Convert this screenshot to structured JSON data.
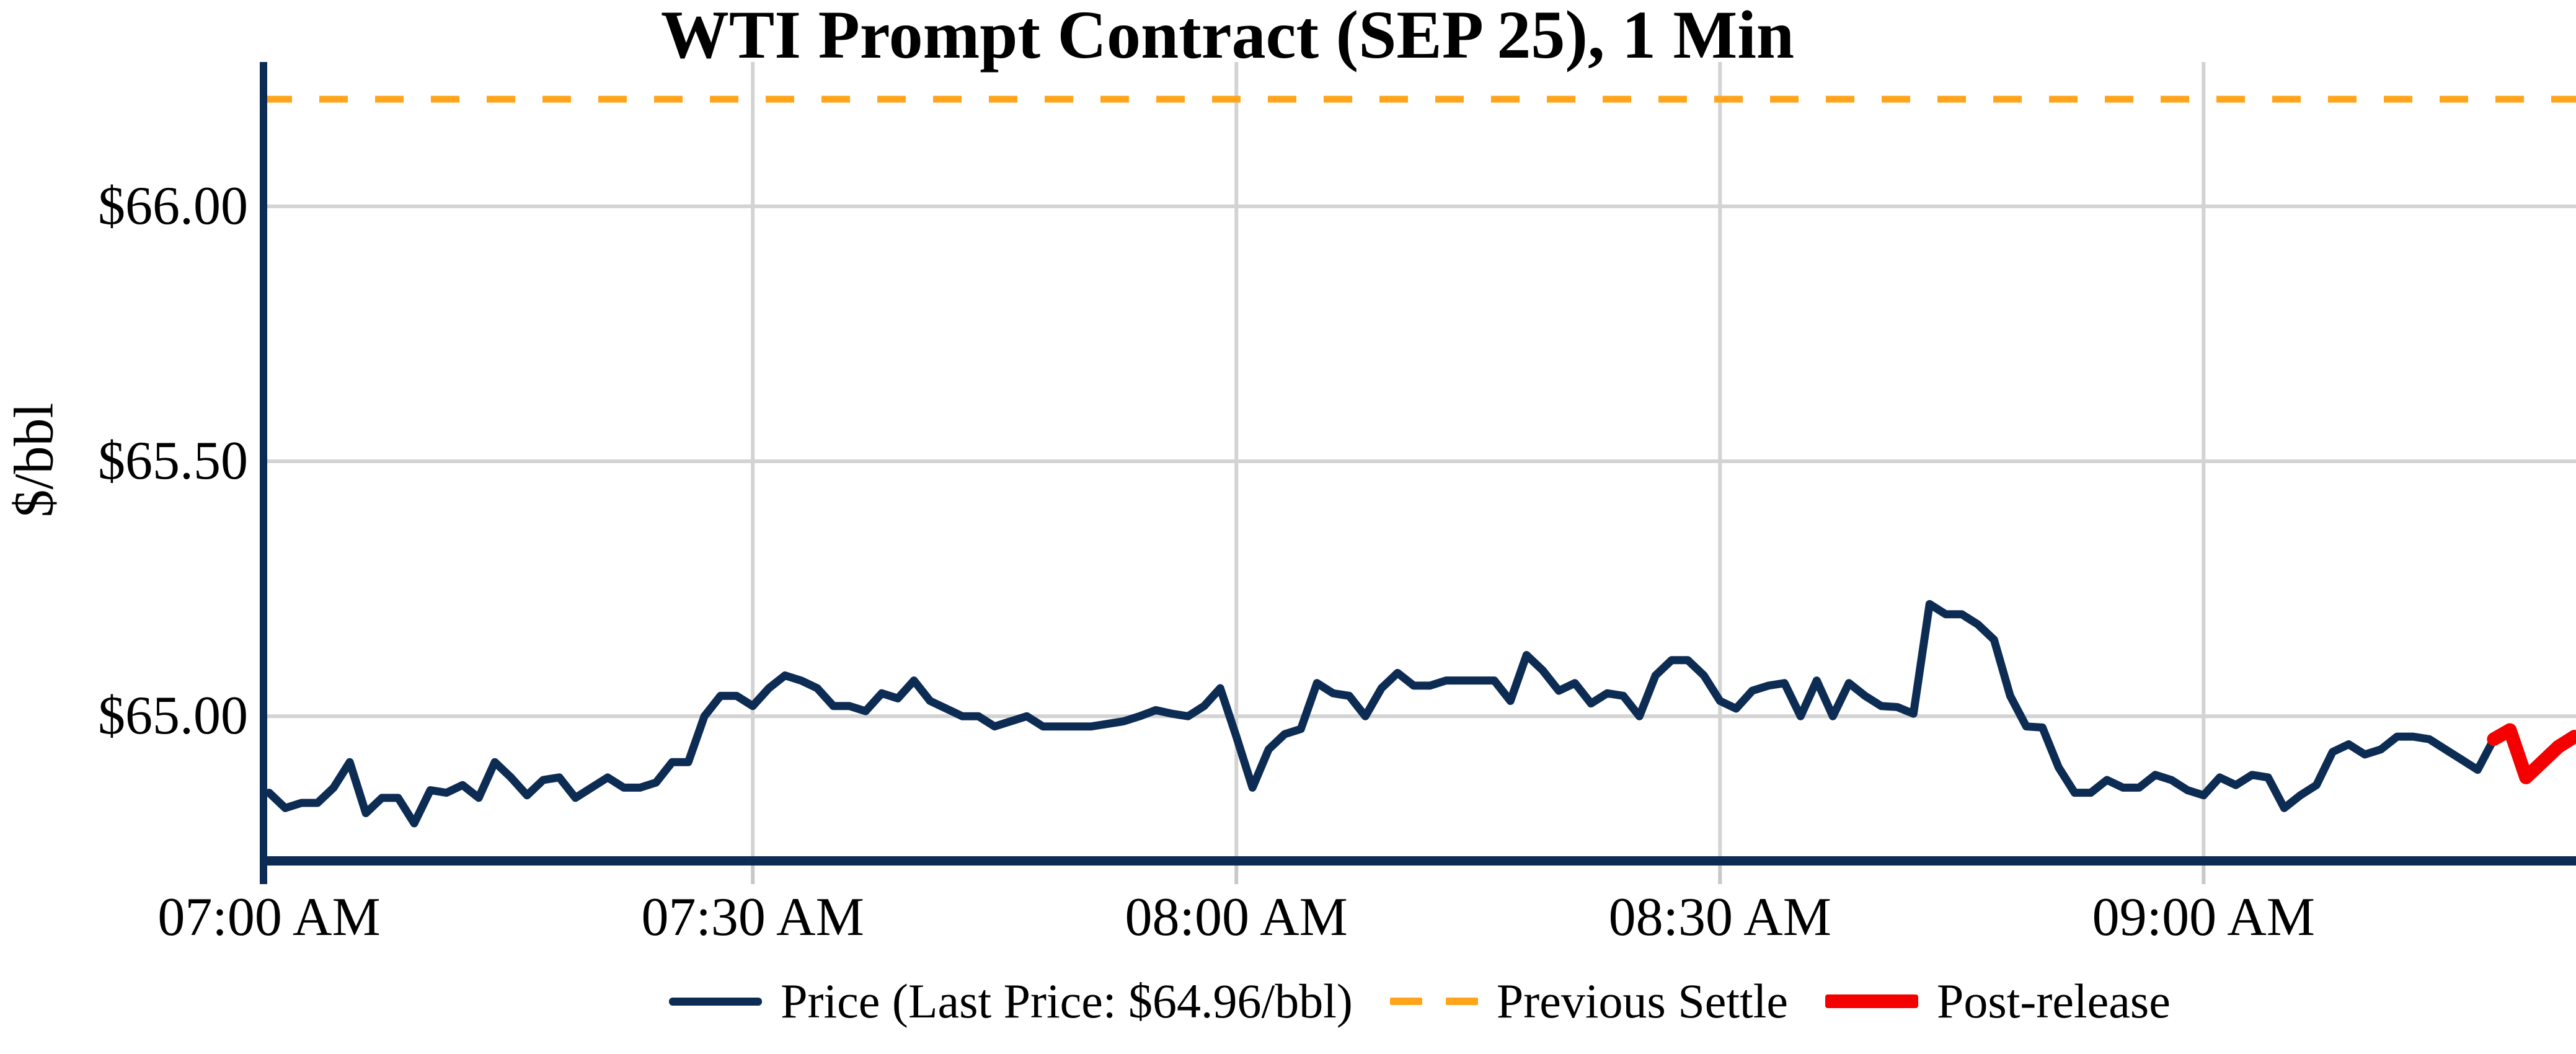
{
  "title": "WTI Prompt Contract (SEP 25), 1 Min",
  "y_axis": {
    "label": "$/bbl",
    "tick_labels": [
      "$66.00",
      "$65.50",
      "$65.00"
    ],
    "tick_values": [
      66.0,
      65.5,
      65.0
    ]
  },
  "x_axis": {
    "tick_labels": [
      "07:00 AM",
      "07:30 AM",
      "08:00 AM",
      "08:30 AM",
      "09:00 AM"
    ],
    "tick_minutes": [
      0,
      30,
      60,
      90,
      120
    ]
  },
  "legend": {
    "price_label": "Price (Last Price: $64.96/bbl)",
    "settle_label": "Previous Settle",
    "post_label": "Post-release"
  },
  "colors": {
    "navy": "#0d2c54",
    "orange": "#ffa41b",
    "red": "#f50000",
    "grid": "#d3d3d3",
    "tick": "#c8c8c8",
    "text": "#000000"
  },
  "chart_data": {
    "type": "line",
    "title": "WTI Prompt Contract (SEP 25), 1 Min",
    "ylabel": "$/bbl",
    "x_axis_unit": "time of day, 1-minute bars starting 07:00 AM",
    "x_tick_labels": [
      "07:00 AM",
      "07:30 AM",
      "08:00 AM",
      "08:30 AM",
      "09:00 AM"
    ],
    "x_tick_minutes": [
      0,
      30,
      60,
      90,
      120
    ],
    "xlim_minutes": [
      -0.35,
      143.1
    ],
    "ylim": [
      64.717,
      66.283
    ],
    "y_tick_values": [
      66.0,
      65.5,
      65.0
    ],
    "grid": true,
    "legend_position": "bottom center",
    "previous_settle": 66.21,
    "last_price": 64.96,
    "series": [
      {
        "name": "Price (Last Price: $64.96/bbl)",
        "type": "line",
        "color_key": "navy",
        "start_minute": 0,
        "interval_minutes": 1,
        "values": [
          64.85,
          64.82,
          64.83,
          64.83,
          64.86,
          64.91,
          64.81,
          64.84,
          64.84,
          64.79,
          64.855,
          64.85,
          64.865,
          64.84,
          64.91,
          64.88,
          64.845,
          64.875,
          64.88,
          64.84,
          64.86,
          64.88,
          64.86,
          64.86,
          64.87,
          64.91,
          64.91,
          65.0,
          65.04,
          65.04,
          65.02,
          65.055,
          65.08,
          65.07,
          65.055,
          65.02,
          65.02,
          65.01,
          65.045,
          65.035,
          65.07,
          65.03,
          65.015,
          65.0,
          65.0,
          64.98,
          64.99,
          65.0,
          64.98,
          64.98,
          64.98,
          64.98,
          64.985,
          64.99,
          65.0,
          65.012,
          65.005,
          65.0,
          65.02,
          65.055,
          64.96,
          64.86,
          64.935,
          64.965,
          64.975,
          65.065,
          65.045,
          65.04,
          65.0,
          65.055,
          65.085,
          65.06,
          65.06,
          65.07,
          65.07,
          65.07,
          65.07,
          65.03,
          65.12,
          65.09,
          65.05,
          65.065,
          65.025,
          65.045,
          65.04,
          65.0,
          65.08,
          65.11,
          65.11,
          65.08,
          65.03,
          65.015,
          65.05,
          65.06,
          65.065,
          65.0,
          65.07,
          65.0,
          65.065,
          65.04,
          65.02,
          65.018,
          65.005,
          65.22,
          65.2,
          65.2,
          65.18,
          65.15,
          65.04,
          64.98,
          64.978,
          64.9,
          64.85,
          64.85,
          64.875,
          64.86,
          64.86,
          64.885,
          64.875,
          64.855,
          64.845,
          64.88,
          64.865,
          64.885,
          64.88,
          64.82,
          64.845,
          64.865,
          64.93,
          64.945,
          64.925,
          64.935,
          64.96,
          64.96,
          64.955,
          64.935,
          64.915,
          64.895,
          64.955
        ]
      },
      {
        "name": "Post-release",
        "type": "line",
        "color_key": "red",
        "start_minute": 138,
        "interval_minutes": 1,
        "values": [
          64.955,
          64.973,
          64.88,
          64.91,
          64.94,
          64.96
        ]
      },
      {
        "name": "Previous Settle",
        "type": "hline",
        "style": "dashed",
        "color_key": "orange",
        "value": 66.21
      }
    ]
  }
}
